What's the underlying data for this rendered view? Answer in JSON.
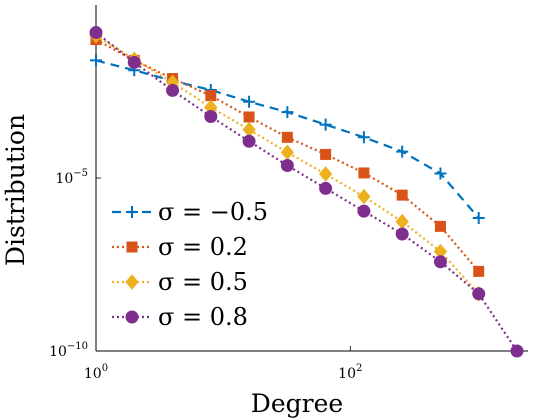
{
  "chart_data": {
    "type": "line",
    "xlabel": "Degree",
    "ylabel": "Distribution",
    "x_scale": "log",
    "y_scale": "log",
    "xlim": [
      1,
      2500
    ],
    "ylim": [
      1e-10,
      1
    ],
    "x_ticks": [
      {
        "value": 1,
        "base": "10",
        "exp": "0"
      },
      {
        "value": 100,
        "base": "10",
        "exp": "2"
      }
    ],
    "y_ticks": [
      {
        "value": 1e-05,
        "base": "10",
        "exp": "−5"
      },
      {
        "value": 1e-10,
        "base": "10",
        "exp": "−10"
      }
    ],
    "grid": false,
    "legend_position": "bottom-left",
    "series": [
      {
        "name": "σ = −0.5",
        "color": "#0072BD",
        "marker": "plus",
        "line": "dashed",
        "x": [
          1,
          2,
          4,
          8,
          16,
          32,
          64,
          128,
          256,
          512,
          1024
        ],
        "y": [
          0.025,
          0.013,
          0.0065,
          0.0035,
          0.0016,
          0.0008,
          0.00035,
          0.00015,
          5.8e-05,
          1.35e-05,
          7e-07
        ]
      },
      {
        "name": "σ = 0.2",
        "color": "#D95319",
        "marker": "square",
        "line": "dotted",
        "x": [
          1,
          2,
          4,
          8,
          16,
          32,
          64,
          128,
          256,
          512,
          1024
        ],
        "y": [
          0.1,
          0.025,
          0.0075,
          0.0024,
          0.00058,
          0.00015,
          4.8e-05,
          1.4e-05,
          3.2e-06,
          4e-07,
          2e-08
        ]
      },
      {
        "name": "σ = 0.5",
        "color": "#EDB120",
        "marker": "diamond",
        "line": "dotted",
        "x": [
          1,
          2,
          4,
          8,
          16,
          32,
          64,
          128,
          256,
          512,
          1024
        ],
        "y": [
          0.13,
          0.027,
          0.0058,
          0.0011,
          0.00025,
          5.5e-05,
          1.3e-05,
          2.9e-06,
          5.5e-07,
          7.5e-08,
          4.5e-09
        ]
      },
      {
        "name": "σ = 0.8",
        "color": "#7E2F8E",
        "marker": "circle",
        "line": "dotted",
        "x": [
          1,
          2,
          4,
          8,
          16,
          32,
          64,
          128,
          256,
          512,
          1024,
          2048
        ],
        "y": [
          0.16,
          0.022,
          0.0034,
          0.0006,
          0.000115,
          2.3e-05,
          5e-06,
          1.1e-06,
          2.4e-07,
          3.8e-08,
          4.5e-09,
          1e-10
        ]
      }
    ]
  }
}
